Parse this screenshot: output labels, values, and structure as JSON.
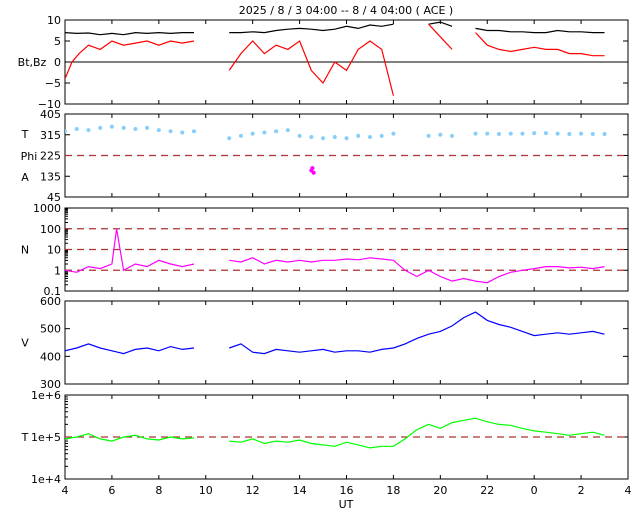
{
  "title": "2025 /  8 /  3   04:00 -- 8 /  4   04:00 ( ACE )",
  "xlabel": "UT",
  "x_ticks": [
    "4",
    "6",
    "8",
    "10",
    "12",
    "14",
    "16",
    "18",
    "20",
    "22",
    "0",
    "2",
    "4"
  ],
  "colors": {
    "bt": "#000000",
    "bz": "#ff0000",
    "theta": "#87cefa",
    "phi": "#ff00ff",
    "density": "#ff00ff",
    "speed": "#0000ff",
    "temperature": "#00ff00",
    "ref_line": "#aa3333"
  },
  "chart_data": [
    {
      "type": "line",
      "panel": "magnetic-field",
      "ylabel": "Bt,Bz",
      "ylim": [
        -10,
        10
      ],
      "yticks": [
        "10",
        "5",
        "0",
        "−5",
        "−10"
      ],
      "zero_line": 0,
      "gaps": [
        [
          9.7,
          11.0
        ],
        [
          18.0,
          19.5
        ],
        [
          20.7,
          21.5
        ]
      ],
      "series": [
        {
          "id": "bt",
          "x": [
            4,
            4.5,
            5,
            5.5,
            6,
            6.5,
            7,
            7.5,
            8,
            8.5,
            9,
            9.5,
            11,
            11.5,
            12,
            12.5,
            13,
            13.5,
            14,
            14.5,
            15,
            15.5,
            16,
            16.5,
            17,
            17.5,
            18,
            19.5,
            20,
            20.5,
            21.5,
            22,
            22.5,
            23,
            23.5,
            24,
            24.5,
            25,
            25.5,
            26,
            26.5,
            27
          ],
          "y": [
            7,
            6.8,
            6.9,
            6.5,
            6.8,
            6.5,
            7,
            6.8,
            7,
            6.8,
            7,
            7,
            7,
            7,
            7.2,
            7,
            7.5,
            7.8,
            8,
            7.8,
            7.5,
            7.8,
            8.5,
            8,
            8.8,
            8.5,
            9,
            9,
            9.5,
            8.5,
            8,
            7.5,
            7.5,
            7.2,
            7.2,
            7,
            7,
            7.5,
            7.2,
            7.2,
            7,
            7
          ]
        },
        {
          "id": "bz",
          "x": [
            4,
            4.3,
            4.6,
            5,
            5.5,
            6,
            6.5,
            7,
            7.5,
            8,
            8.5,
            9,
            9.5,
            11,
            11.5,
            12,
            12.5,
            13,
            13.5,
            14,
            14.5,
            15,
            15.5,
            16,
            16.5,
            17,
            17.5,
            18,
            19.5,
            20,
            20.5,
            21.5,
            22,
            22.5,
            23,
            23.5,
            24,
            24.5,
            25,
            25.5,
            26,
            26.5,
            27
          ],
          "y": [
            -4,
            0,
            2,
            4,
            3,
            5,
            4,
            4.5,
            5,
            4,
            5,
            4.5,
            5,
            -2,
            2,
            5,
            2,
            4,
            3,
            5,
            -2,
            -5,
            0,
            -2,
            3,
            5,
            3,
            -8,
            9,
            6,
            3,
            7,
            4,
            3,
            2.5,
            3,
            3.5,
            3,
            3,
            2,
            2,
            1.5,
            1.5
          ]
        }
      ]
    },
    {
      "type": "scatter",
      "panel": "angles",
      "ylabel_top": "T",
      "ylabel_mid": "Phi",
      "ylabel_bottom": "A",
      "ylim": [
        45,
        405
      ],
      "yticks": [
        "405",
        "315",
        "225",
        "135",
        "45"
      ],
      "ref_line": 225,
      "gaps": [
        [
          9.7,
          11.0
        ],
        [
          18.0,
          19.5
        ],
        [
          20.7,
          21.5
        ]
      ],
      "series": [
        {
          "id": "theta",
          "x": [
            4,
            4.5,
            5,
            5.5,
            6,
            6.5,
            7,
            7.5,
            8,
            8.5,
            9,
            9.5,
            11,
            11.5,
            12,
            12.5,
            13,
            13.5,
            14,
            14.5,
            15,
            15.5,
            16,
            16.5,
            17,
            17.5,
            18,
            19.5,
            20,
            20.5,
            21.5,
            22,
            22.5,
            23,
            23.5,
            24,
            24.5,
            25,
            25.5,
            26,
            26.5,
            27
          ],
          "y": [
            330,
            340,
            335,
            345,
            350,
            345,
            340,
            345,
            335,
            330,
            325,
            330,
            300,
            310,
            320,
            325,
            330,
            335,
            310,
            305,
            300,
            305,
            300,
            310,
            305,
            310,
            320,
            310,
            315,
            310,
            320,
            320,
            318,
            320,
            320,
            322,
            322,
            320,
            318,
            320,
            318,
            318
          ]
        },
        {
          "id": "phi",
          "x": [
            14.5,
            14.55,
            14.6
          ],
          "y": [
            160,
            170,
            150
          ]
        }
      ]
    },
    {
      "type": "line",
      "panel": "density",
      "ylabel": "N",
      "ylim": [
        0.1,
        1000
      ],
      "log_scale": true,
      "yticks": [
        "1000",
        "100",
        "10",
        "1",
        "0.1"
      ],
      "ref_lines": [
        100,
        10,
        1
      ],
      "gaps": [
        [
          9.7,
          11.0
        ]
      ],
      "series": [
        {
          "id": "density",
          "x": [
            4,
            4.5,
            5,
            5.5,
            6,
            6.2,
            6.5,
            7,
            7.5,
            8,
            8.5,
            9,
            9.5,
            11,
            11.5,
            12,
            12.5,
            13,
            13.5,
            14,
            14.5,
            15,
            15.5,
            16,
            16.5,
            17,
            17.5,
            18,
            18.5,
            19,
            19.5,
            20,
            20.5,
            21,
            21.5,
            22,
            22.5,
            23,
            23.5,
            24,
            24.5,
            25,
            25.5,
            26,
            26.5,
            27
          ],
          "y": [
            1,
            0.8,
            1.5,
            1.2,
            2,
            100,
            1,
            2,
            1.5,
            3,
            2,
            1.5,
            2,
            3,
            2.5,
            4,
            2,
            3,
            2.5,
            3,
            2.5,
            3,
            3,
            3.5,
            3.2,
            4,
            3.5,
            3,
            1,
            0.5,
            1,
            0.5,
            0.3,
            0.4,
            0.3,
            0.25,
            0.5,
            0.8,
            1,
            1.2,
            1.5,
            1.5,
            1.3,
            1.4,
            1.2,
            1.5
          ]
        }
      ]
    },
    {
      "type": "line",
      "panel": "speed",
      "ylabel": "V",
      "ylim": [
        300,
        600
      ],
      "yticks": [
        "600",
        "500",
        "400",
        "300"
      ],
      "gaps": [
        [
          9.7,
          11.0
        ]
      ],
      "series": [
        {
          "id": "speed",
          "x": [
            4,
            4.5,
            5,
            5.5,
            6,
            6.5,
            7,
            7.5,
            8,
            8.5,
            9,
            9.5,
            11,
            11.5,
            12,
            12.5,
            13,
            13.5,
            14,
            14.5,
            15,
            15.5,
            16,
            16.5,
            17,
            17.5,
            18,
            18.5,
            19,
            19.5,
            20,
            20.5,
            21,
            21.5,
            22,
            22.5,
            23,
            23.5,
            24,
            24.5,
            25,
            25.5,
            26,
            26.5,
            27
          ],
          "y": [
            420,
            430,
            445,
            430,
            420,
            410,
            425,
            430,
            420,
            435,
            425,
            430,
            430,
            445,
            415,
            410,
            425,
            420,
            415,
            420,
            425,
            415,
            420,
            420,
            415,
            425,
            430,
            445,
            465,
            480,
            490,
            510,
            540,
            560,
            530,
            515,
            505,
            490,
            475,
            480,
            485,
            480,
            485,
            490,
            480
          ]
        }
      ]
    },
    {
      "type": "line",
      "panel": "temperature",
      "ylabel": "T",
      "ylim": [
        10000,
        1000000
      ],
      "log_scale": true,
      "yticks": [
        "1e+6",
        "1e+5",
        "1e+4"
      ],
      "ref_line": 100000,
      "gaps": [
        [
          9.7,
          11.0
        ]
      ],
      "series": [
        {
          "id": "temperature",
          "x": [
            4,
            4.5,
            5,
            5.5,
            6,
            6.5,
            7,
            7.5,
            8,
            8.5,
            9,
            9.5,
            11,
            11.5,
            12,
            12.5,
            13,
            13.5,
            14,
            14.5,
            15,
            15.5,
            16,
            16.5,
            17,
            17.5,
            18,
            18.5,
            19,
            19.5,
            20,
            20.5,
            21,
            21.5,
            22,
            22.5,
            23,
            23.5,
            24,
            24.5,
            25,
            25.5,
            26,
            26.5,
            27
          ],
          "y": [
            90000,
            100000,
            120000,
            90000,
            80000,
            100000,
            110000,
            90000,
            85000,
            100000,
            90000,
            95000,
            80000,
            75000,
            90000,
            70000,
            80000,
            75000,
            85000,
            70000,
            65000,
            60000,
            75000,
            65000,
            55000,
            60000,
            60000,
            90000,
            150000,
            200000,
            160000,
            220000,
            250000,
            280000,
            230000,
            200000,
            190000,
            160000,
            140000,
            130000,
            120000,
            110000,
            120000,
            130000,
            110000
          ]
        }
      ]
    }
  ]
}
